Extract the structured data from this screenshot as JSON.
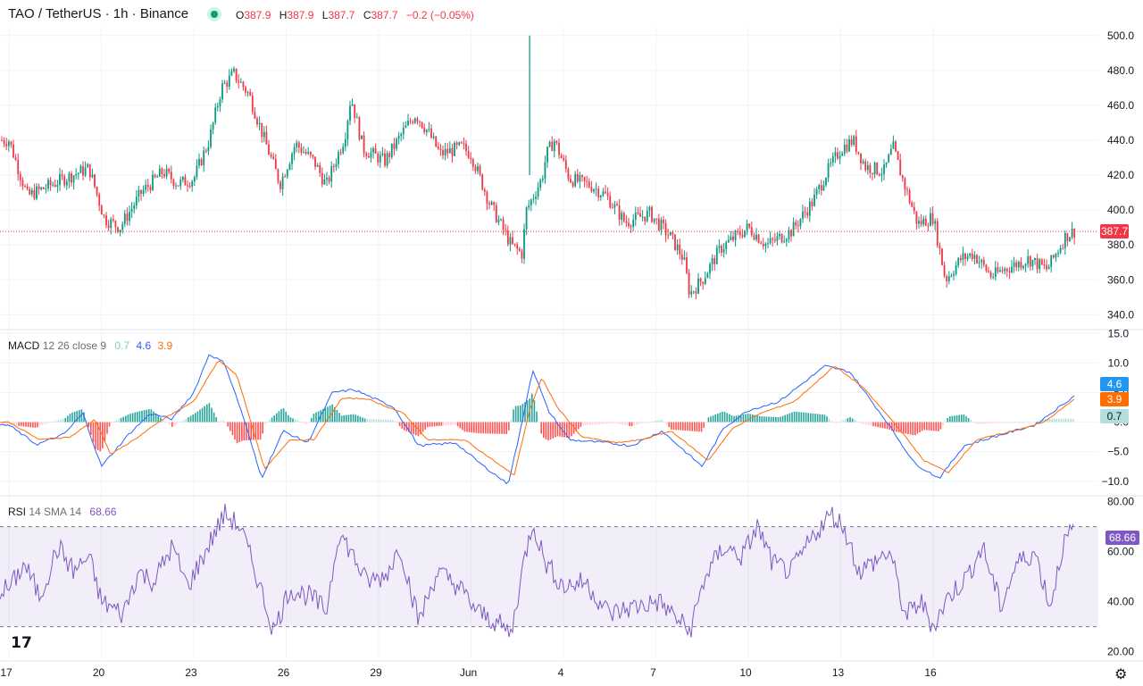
{
  "header": {
    "symbol": "TAO / TetherUS · 1h · Binance",
    "o_label": "O",
    "o_value": "387.9",
    "h_label": "H",
    "h_value": "387.9",
    "l_label": "L",
    "l_value": "387.7",
    "c_label": "C",
    "c_value": "387.7",
    "change": "−0.2 (−0.05%)"
  },
  "macd_label": {
    "name": "MACD",
    "params": "12 26 close 9",
    "hist": "0.7",
    "macd": "4.6",
    "signal": "3.9"
  },
  "rsi_label": {
    "name": "RSI",
    "params": "14 SMA 14",
    "value": "68.66"
  },
  "price_tag": "387.7",
  "macd_tags": {
    "macd": "4.6",
    "signal": "3.9",
    "hist": "0.7"
  },
  "rsi_tag": "68.66",
  "colors": {
    "up": "#089981",
    "down": "#f23645",
    "macd": "#2962ff",
    "signal": "#ff6d00",
    "rsi": "#7e57c2"
  },
  "icons": {
    "logo": "tradingview-logo-icon",
    "settings": "gear-icon"
  },
  "logo_text": "17",
  "chart_data": [
    {
      "type": "candlestick",
      "title": "TAO / TetherUS · 1h · Binance",
      "x_ticks": [
        "17",
        "20",
        "23",
        "26",
        "29",
        "Jun",
        "4",
        "7",
        "10",
        "13",
        "16"
      ],
      "y_ticks": [
        "340.0",
        "360.0",
        "380.0",
        "400.0",
        "420.0",
        "440.0",
        "460.0",
        "480.0",
        "500.0"
      ],
      "ylim": [
        332,
        505
      ],
      "last_price": 387.7,
      "close_path": [
        [
          0,
          440
        ],
        [
          0.6,
          408
        ],
        [
          1.8,
          418
        ],
        [
          2.6,
          424
        ],
        [
          3.1,
          395
        ],
        [
          3.6,
          390
        ],
        [
          4.3,
          410
        ],
        [
          5.0,
          422
        ],
        [
          5.5,
          415
        ],
        [
          6.0,
          418
        ],
        [
          6.5,
          440
        ],
        [
          6.9,
          470
        ],
        [
          7.3,
          478
        ],
        [
          7.8,
          466
        ],
        [
          8.2,
          445
        ],
        [
          8.8,
          415
        ],
        [
          9.3,
          438
        ],
        [
          9.9,
          428
        ],
        [
          10.3,
          414
        ],
        [
          10.9,
          442
        ],
        [
          11.1,
          465
        ],
        [
          11.5,
          435
        ],
        [
          12.2,
          428
        ],
        [
          12.8,
          445
        ],
        [
          13.2,
          455
        ],
        [
          13.6,
          445
        ],
        [
          14.0,
          432
        ],
        [
          14.7,
          436
        ],
        [
          15.0,
          432
        ],
        [
          15.6,
          404
        ],
        [
          16.3,
          380
        ],
        [
          16.65,
          375
        ],
        [
          16.8,
          400
        ],
        [
          17.3,
          418
        ],
        [
          17.45,
          432
        ],
        [
          17.7,
          440
        ],
        [
          18.2,
          418
        ],
        [
          18.9,
          414
        ],
        [
          19.4,
          408
        ],
        [
          20.0,
          393
        ],
        [
          20.8,
          398
        ],
        [
          21.5,
          384
        ],
        [
          21.9,
          372
        ],
        [
          22.1,
          352
        ],
        [
          22.5,
          360
        ],
        [
          23.1,
          378
        ],
        [
          23.6,
          385
        ],
        [
          24.0,
          390
        ],
        [
          24.6,
          380
        ],
        [
          25.4,
          388
        ],
        [
          26.1,
          405
        ],
        [
          26.5,
          420
        ],
        [
          27.0,
          435
        ],
        [
          27.4,
          440
        ],
        [
          27.8,
          425
        ],
        [
          28.4,
          422
        ],
        [
          28.7,
          436
        ],
        [
          29.0,
          418
        ],
        [
          29.5,
          392
        ],
        [
          30.0,
          396
        ],
        [
          30.4,
          360
        ],
        [
          30.9,
          372
        ],
        [
          31.3,
          375
        ],
        [
          31.9,
          362
        ],
        [
          32.3,
          366
        ],
        [
          33.1,
          372
        ],
        [
          33.7,
          366
        ],
        [
          34.3,
          385
        ],
        [
          34.6,
          388
        ]
      ],
      "high_spike": {
        "x": 16.9,
        "value": 500
      }
    },
    {
      "type": "histogram+line",
      "name": "MACD 12 26 close 9",
      "y_ticks": [
        "−10.0",
        "−5.0",
        "0.0",
        "5.0",
        "10.0",
        "15.0"
      ],
      "ylim": [
        -12,
        15.5
      ],
      "macd_path": [
        [
          0,
          -0.5
        ],
        [
          0.9,
          -3.8
        ],
        [
          1.8,
          -2
        ],
        [
          2.4,
          1.5
        ],
        [
          3.0,
          -7.5
        ],
        [
          3.9,
          -2
        ],
        [
          4.6,
          1.5
        ],
        [
          5.3,
          0.5
        ],
        [
          6.0,
          5
        ],
        [
          6.5,
          11.5
        ],
        [
          7.0,
          10
        ],
        [
          7.6,
          1
        ],
        [
          8.2,
          -9.5
        ],
        [
          8.9,
          -1.5
        ],
        [
          9.7,
          -3.5
        ],
        [
          10.5,
          5
        ],
        [
          11.2,
          5.5
        ],
        [
          12.5,
          2.5
        ],
        [
          13.3,
          -4
        ],
        [
          14.5,
          -3.5
        ],
        [
          15.3,
          -7
        ],
        [
          16.2,
          -10.5
        ],
        [
          16.6,
          -1.5
        ],
        [
          17.0,
          9
        ],
        [
          17.5,
          2
        ],
        [
          18.2,
          -3
        ],
        [
          19.4,
          -3.5
        ],
        [
          20.2,
          -4
        ],
        [
          21.2,
          -1.5
        ],
        [
          22.5,
          -7.5
        ],
        [
          23.2,
          -1
        ],
        [
          24.0,
          2
        ],
        [
          25.0,
          3.5
        ],
        [
          26.5,
          9.5
        ],
        [
          27.3,
          8.5
        ],
        [
          28.5,
          0
        ],
        [
          29.4,
          -7
        ],
        [
          30.2,
          -9.5
        ],
        [
          31.0,
          -4
        ],
        [
          32.3,
          -2
        ],
        [
          33.3,
          -0.5
        ],
        [
          34.6,
          4.5
        ]
      ],
      "signal_path": [
        [
          0,
          0
        ],
        [
          1.0,
          -3
        ],
        [
          2.0,
          -2.5
        ],
        [
          2.8,
          0.5
        ],
        [
          3.3,
          -5.5
        ],
        [
          4.2,
          -2.5
        ],
        [
          5.0,
          0.5
        ],
        [
          6.0,
          3.5
        ],
        [
          6.8,
          10.5
        ],
        [
          7.4,
          8
        ],
        [
          8.3,
          -8
        ],
        [
          9.1,
          -3
        ],
        [
          9.9,
          -3
        ],
        [
          10.8,
          4
        ],
        [
          11.6,
          4
        ],
        [
          12.8,
          1.5
        ],
        [
          13.6,
          -3
        ],
        [
          14.8,
          -3
        ],
        [
          15.6,
          -6
        ],
        [
          16.4,
          -9
        ],
        [
          16.9,
          2
        ],
        [
          17.3,
          7.5
        ],
        [
          17.8,
          2.5
        ],
        [
          18.6,
          -2.5
        ],
        [
          19.7,
          -3.5
        ],
        [
          20.5,
          -3
        ],
        [
          21.5,
          -1.5
        ],
        [
          22.7,
          -6.5
        ],
        [
          23.5,
          -1
        ],
        [
          24.4,
          1.5
        ],
        [
          25.5,
          3.5
        ],
        [
          26.8,
          9.5
        ],
        [
          27.7,
          6
        ],
        [
          28.8,
          -0.5
        ],
        [
          29.7,
          -6.5
        ],
        [
          30.5,
          -8.5
        ],
        [
          31.4,
          -3
        ],
        [
          32.6,
          -1.5
        ],
        [
          33.6,
          0
        ],
        [
          34.6,
          3.9
        ]
      ]
    },
    {
      "type": "line",
      "name": "RSI 14 SMA 14",
      "y_ticks": [
        "20.00",
        "40.00",
        "60.00",
        "80.00"
      ],
      "ylim": [
        17,
        82
      ],
      "bands": [
        30,
        70
      ],
      "rsi_path": [
        [
          0,
          45
        ],
        [
          0.5,
          55
        ],
        [
          1.0,
          42
        ],
        [
          1.6,
          62
        ],
        [
          2.1,
          52
        ],
        [
          2.6,
          58
        ],
        [
          3.0,
          40
        ],
        [
          3.7,
          35
        ],
        [
          4.2,
          52
        ],
        [
          4.7,
          48
        ],
        [
          5.3,
          62
        ],
        [
          5.8,
          46
        ],
        [
          6.3,
          58
        ],
        [
          6.7,
          68
        ],
        [
          7.0,
          75
        ],
        [
          7.5,
          70
        ],
        [
          8.0,
          52
        ],
        [
          8.6,
          28
        ],
        [
          9.1,
          45
        ],
        [
          9.8,
          42
        ],
        [
          10.3,
          36
        ],
        [
          10.7,
          68
        ],
        [
          11.1,
          60
        ],
        [
          11.6,
          48
        ],
        [
          12.2,
          50
        ],
        [
          12.7,
          62
        ],
        [
          13.3,
          32
        ],
        [
          13.9,
          52
        ],
        [
          14.6,
          46
        ],
        [
          15.2,
          36
        ],
        [
          15.8,
          32
        ],
        [
          16.3,
          27
        ],
        [
          16.7,
          55
        ],
        [
          17.0,
          72
        ],
        [
          17.4,
          56
        ],
        [
          18.0,
          46
        ],
        [
          18.7,
          48
        ],
        [
          19.5,
          35
        ],
        [
          20.3,
          38
        ],
        [
          21.1,
          40
        ],
        [
          21.7,
          33
        ],
        [
          22.1,
          28
        ],
        [
          22.6,
          50
        ],
        [
          23.2,
          62
        ],
        [
          23.8,
          58
        ],
        [
          24.3,
          70
        ],
        [
          24.8,
          55
        ],
        [
          25.4,
          52
        ],
        [
          26.2,
          68
        ],
        [
          26.7,
          75
        ],
        [
          27.1,
          70
        ],
        [
          27.6,
          52
        ],
        [
          28.1,
          56
        ],
        [
          28.6,
          60
        ],
        [
          29.1,
          34
        ],
        [
          29.6,
          40
        ],
        [
          30.0,
          30
        ],
        [
          30.5,
          42
        ],
        [
          31.1,
          50
        ],
        [
          31.6,
          62
        ],
        [
          32.2,
          38
        ],
        [
          32.7,
          55
        ],
        [
          33.3,
          60
        ],
        [
          33.8,
          38
        ],
        [
          34.2,
          62
        ],
        [
          34.6,
          70
        ]
      ]
    }
  ]
}
